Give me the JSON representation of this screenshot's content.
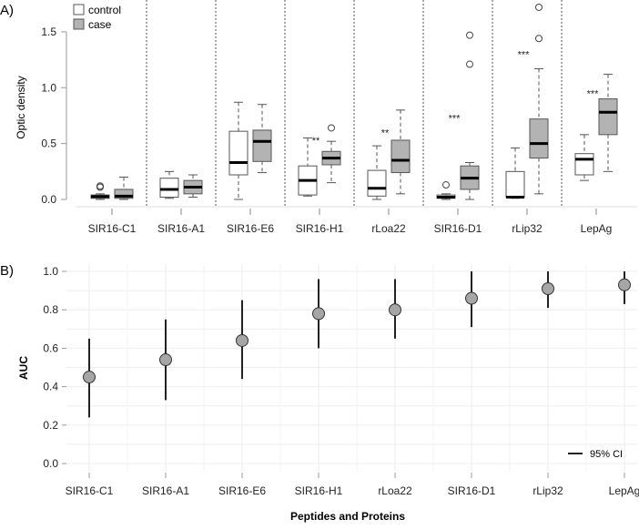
{
  "chart_data": [
    {
      "panel_label": "A)",
      "type": "box",
      "ylabel": "Optic density",
      "ylim": [
        -0.08,
        1.75
      ],
      "yticks": [
        "0.0",
        "0.5",
        "1.0",
        "1.5"
      ],
      "ytick_values": [
        0,
        0.5,
        1.0,
        1.5
      ],
      "legend": {
        "placement": "top-left",
        "entries": [
          {
            "label": "control",
            "color": "#ffffff"
          },
          {
            "label": "case",
            "color": "#b3b3b3"
          }
        ]
      },
      "categories": [
        "SIR16-C1",
        "SIR16-A1",
        "SIR16-E6",
        "SIR16-H1",
        "rLoa22",
        "SIR16-D1",
        "rLip32",
        "LepAg"
      ],
      "groups": [
        {
          "control": {
            "min": 0.0,
            "q1": 0.01,
            "median": 0.025,
            "q3": 0.04,
            "max": 0.05,
            "outliers": [
              0.11,
              0.12
            ]
          },
          "case": {
            "min": 0.0,
            "q1": 0.01,
            "median": 0.03,
            "q3": 0.09,
            "max": 0.2,
            "outliers": []
          },
          "significance": ""
        },
        {
          "control": {
            "min": 0.01,
            "q1": 0.02,
            "median": 0.09,
            "q3": 0.19,
            "max": 0.25,
            "outliers": []
          },
          "case": {
            "min": 0.02,
            "q1": 0.05,
            "median": 0.11,
            "q3": 0.17,
            "max": 0.22,
            "outliers": []
          },
          "significance": ""
        },
        {
          "control": {
            "min": 0.0,
            "q1": 0.22,
            "median": 0.33,
            "q3": 0.61,
            "max": 0.87,
            "outliers": []
          },
          "case": {
            "min": 0.24,
            "q1": 0.34,
            "median": 0.52,
            "q3": 0.62,
            "max": 0.85,
            "outliers": []
          },
          "significance": ""
        },
        {
          "control": {
            "min": 0.03,
            "q1": 0.04,
            "median": 0.17,
            "q3": 0.3,
            "max": 0.55,
            "outliers": []
          },
          "case": {
            "min": 0.15,
            "q1": 0.31,
            "median": 0.37,
            "q3": 0.43,
            "max": 0.52,
            "outliers": [
              0.64
            ]
          },
          "significance": "**",
          "sig_y": 0.53
        },
        {
          "control": {
            "min": 0.0,
            "q1": 0.03,
            "median": 0.1,
            "q3": 0.26,
            "max": 0.48,
            "outliers": []
          },
          "case": {
            "min": 0.05,
            "q1": 0.24,
            "median": 0.35,
            "q3": 0.53,
            "max": 0.8,
            "outliers": []
          },
          "significance": "**",
          "sig_y": 0.6
        },
        {
          "control": {
            "min": 0.0,
            "q1": 0.01,
            "median": 0.02,
            "q3": 0.04,
            "max": 0.05,
            "outliers": [
              0.13
            ]
          },
          "case": {
            "min": 0.0,
            "q1": 0.09,
            "median": 0.19,
            "q3": 0.3,
            "max": 0.33,
            "outliers": [
              1.21,
              1.47
            ]
          },
          "significance": "***",
          "sig_y": 0.73
        },
        {
          "control": {
            "min": 0.01,
            "q1": 0.02,
            "median": 0.02,
            "q3": 0.25,
            "max": 0.46,
            "outliers": []
          },
          "case": {
            "min": 0.05,
            "q1": 0.37,
            "median": 0.5,
            "q3": 0.72,
            "max": 1.17,
            "outliers": [
              1.44,
              1.72
            ]
          },
          "significance": "***",
          "sig_y": 1.3
        },
        {
          "control": {
            "min": 0.17,
            "q1": 0.22,
            "median": 0.36,
            "q3": 0.41,
            "max": 0.58,
            "outliers": []
          },
          "case": {
            "min": 0.25,
            "q1": 0.58,
            "median": 0.78,
            "q3": 0.9,
            "max": 1.12,
            "outliers": []
          },
          "significance": "***",
          "sig_y": 0.95
        }
      ]
    },
    {
      "panel_label": "B)",
      "type": "pointrange",
      "xlabel": "Peptides and Proteins",
      "ylabel": "AUC",
      "ylim": [
        -0.04,
        1.04
      ],
      "yticks": [
        "0.0",
        "0.2",
        "0.4",
        "0.6",
        "0.8",
        "1.0"
      ],
      "ytick_values": [
        0,
        0.2,
        0.4,
        0.6,
        0.8,
        1.0
      ],
      "grid": true,
      "legend": {
        "placement": "bottom-right",
        "label": "95% CI"
      },
      "categories": [
        "SIR16-C1",
        "SIR16-A1",
        "SIR16-E6",
        "SIR16-H1",
        "rLoa22",
        "SIR16-D1",
        "rLip32",
        "LepAg"
      ],
      "auc": [
        0.45,
        0.54,
        0.64,
        0.78,
        0.8,
        0.86,
        0.91,
        0.93
      ],
      "ci_low": [
        0.24,
        0.33,
        0.44,
        0.6,
        0.65,
        0.71,
        0.81,
        0.83
      ],
      "ci_high": [
        0.65,
        0.75,
        0.85,
        0.96,
        0.96,
        1.0,
        1.0,
        1.0
      ]
    }
  ]
}
